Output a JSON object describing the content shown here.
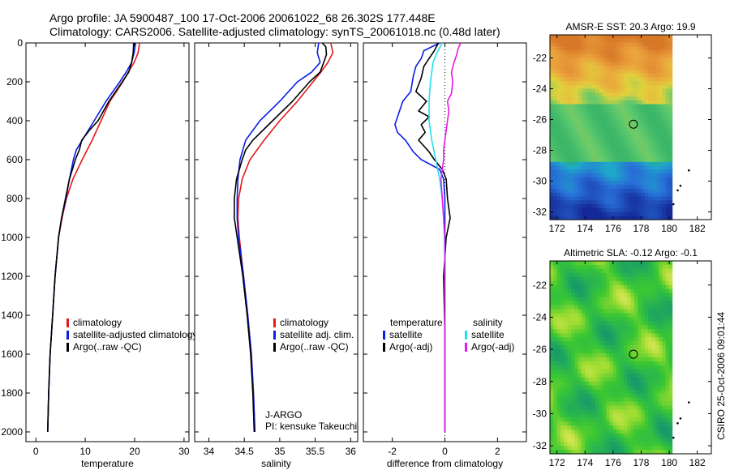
{
  "header": {
    "line1": "Argo profile: JA 5900487_100 17-Oct-2006 20061022_68 26.302S 177.448E",
    "line2": "Climatology: CARS2006. Satellite-adjusted climatology: synTS_20061018.nc (0.48d later)"
  },
  "footer": {
    "credit": "CSIRO 25-Oct-2006 09:01:44"
  },
  "colors": {
    "climatology": "#e31a1c",
    "satellite": "#0a1ee6",
    "argo": "#000000",
    "sat_diff": "#22e0f0",
    "argo_diff": "#e619e6"
  },
  "chart_data": [
    {
      "id": "temperature",
      "type": "line",
      "xlabel": "temperature",
      "ylabel": "",
      "xlim": [
        -2,
        31
      ],
      "ylim": [
        2050,
        0
      ],
      "xticks": [
        0,
        10,
        20,
        30
      ],
      "yticks": [
        0,
        200,
        400,
        600,
        800,
        1000,
        1200,
        1400,
        1600,
        1800,
        2000
      ],
      "legend": [
        "climatology",
        "satellite-adjusted climatology",
        "Argo(..raw -QC)"
      ],
      "series": [
        {
          "name": "climatology",
          "color": "#e31a1c",
          "depth": [
            0,
            50,
            100,
            150,
            200,
            300,
            400,
            500,
            600,
            700,
            800,
            900,
            1000,
            1200,
            1400,
            1600,
            1800,
            2000
          ],
          "values": [
            21.0,
            20.7,
            19.9,
            18.7,
            17.6,
            15.0,
            13.2,
            11.4,
            9.4,
            7.5,
            6.2,
            5.3,
            4.6,
            3.9,
            3.4,
            2.9,
            2.6,
            2.4
          ]
        },
        {
          "name": "satellite-adjusted climatology",
          "color": "#0a1ee6",
          "depth": [
            0,
            50,
            100,
            150,
            200,
            300,
            400,
            500,
            550,
            600,
            700,
            800,
            900,
            1000,
            1200,
            1400,
            1600,
            1800,
            2000
          ],
          "values": [
            20.2,
            19.9,
            19.4,
            18.3,
            17.0,
            14.2,
            11.8,
            9.4,
            8.2,
            7.6,
            6.8,
            6.1,
            5.2,
            4.6,
            3.9,
            3.4,
            2.9,
            2.6,
            2.4
          ]
        },
        {
          "name": "Argo(..raw -QC)",
          "color": "#000000",
          "depth": [
            0,
            50,
            100,
            150,
            200,
            300,
            400,
            450,
            500,
            550,
            600,
            650,
            700,
            800,
            900,
            1000,
            1200,
            1400,
            1600,
            1800,
            2000
          ],
          "values": [
            19.8,
            19.7,
            19.4,
            18.8,
            17.5,
            14.8,
            12.6,
            10.8,
            9.3,
            8.8,
            8.0,
            7.4,
            6.8,
            6.0,
            5.2,
            4.6,
            3.9,
            3.4,
            2.9,
            2.6,
            2.4
          ]
        }
      ]
    },
    {
      "id": "salinity",
      "type": "line",
      "xlabel": "salinity",
      "ylabel": "",
      "xlim": [
        33.8,
        36.1
      ],
      "ylim": [
        2050,
        0
      ],
      "xticks": [
        34,
        34.5,
        35,
        35.5,
        36
      ],
      "yticks": [
        0,
        200,
        400,
        600,
        800,
        1000,
        1200,
        1400,
        1600,
        1800,
        2000
      ],
      "legend": [
        "climatology",
        "satellite adj. clim.",
        "Argo(..raw -QC)"
      ],
      "annotation": [
        "J-ARGO",
        "PI: kensuke Takeuchi"
      ],
      "series": [
        {
          "name": "climatology",
          "color": "#e31a1c",
          "depth": [
            0,
            50,
            100,
            150,
            200,
            300,
            400,
            500,
            600,
            700,
            800,
            900,
            1000,
            1200,
            1400,
            1600,
            1800,
            2000
          ],
          "values": [
            35.72,
            35.75,
            35.68,
            35.58,
            35.47,
            35.25,
            35.0,
            34.78,
            34.58,
            34.47,
            34.42,
            34.41,
            34.43,
            34.49,
            34.55,
            34.6,
            34.63,
            34.65
          ]
        },
        {
          "name": "satellite adj. clim.",
          "color": "#0a1ee6",
          "depth": [
            0,
            50,
            100,
            150,
            200,
            300,
            400,
            500,
            600,
            700,
            800,
            900,
            1000,
            1200,
            1400,
            1600,
            1800,
            2000
          ],
          "values": [
            35.55,
            35.53,
            35.57,
            35.45,
            35.25,
            35.0,
            34.72,
            34.52,
            34.44,
            34.41,
            34.4,
            34.4,
            34.42,
            34.49,
            34.55,
            34.6,
            34.63,
            34.65
          ]
        },
        {
          "name": "Argo(..raw -QC)",
          "color": "#000000",
          "depth": [
            0,
            20,
            60,
            100,
            150,
            200,
            300,
            400,
            450,
            500,
            550,
            600,
            650,
            700,
            800,
            900,
            1000,
            1200,
            1400,
            1600,
            1800,
            2000
          ],
          "values": [
            35.6,
            35.65,
            35.66,
            35.62,
            35.57,
            35.42,
            35.18,
            34.9,
            34.76,
            34.62,
            34.52,
            34.47,
            34.43,
            34.39,
            34.36,
            34.36,
            34.4,
            34.48,
            34.54,
            34.59,
            34.62,
            34.64
          ]
        }
      ]
    },
    {
      "id": "difference",
      "type": "line",
      "xlabel": "difference from climatology",
      "ylabel": "",
      "xlim": [
        -3.1,
        3.1
      ],
      "ylim": [
        2050,
        0
      ],
      "xticks": [
        -2,
        0,
        2
      ],
      "yticks": [
        0,
        200,
        400,
        600,
        800,
        1000,
        1200,
        1400,
        1600,
        1800,
        2000
      ],
      "legend_temperature": [
        "temperature",
        "satellite",
        "Argo(-adj)"
      ],
      "legend_salinity": [
        "salinity",
        "satellite",
        "Argo(-adj)"
      ],
      "series": [
        {
          "name": "temperature satellite",
          "color": "#0a1ee6",
          "depth": [
            0,
            40,
            80,
            120,
            170,
            250,
            300,
            380,
            420,
            460,
            500,
            560,
            600,
            650,
            700,
            800,
            900,
            1000,
            1200,
            1500,
            2000
          ],
          "values": [
            -0.2,
            -0.8,
            -0.9,
            -1.1,
            -1.2,
            -1.3,
            -1.6,
            -1.8,
            -1.9,
            -1.8,
            -1.5,
            -1.2,
            -0.9,
            -0.2,
            -0.05,
            0.0,
            0.0,
            0.0,
            0.0,
            0.0,
            0.0
          ]
        },
        {
          "name": "temperature Argo(-adj)",
          "color": "#000000",
          "depth": [
            0,
            40,
            80,
            120,
            180,
            250,
            300,
            350,
            380,
            420,
            460,
            500,
            560,
            600,
            650,
            700,
            800,
            900,
            1000,
            1200,
            1500,
            2000
          ],
          "values": [
            -0.25,
            -0.4,
            -0.6,
            -0.8,
            -0.9,
            -1.1,
            -0.7,
            -1.0,
            -0.6,
            -0.9,
            -0.75,
            -1.0,
            -0.6,
            -0.4,
            -0.1,
            0.05,
            0.1,
            0.2,
            0.05,
            -0.05,
            0.0,
            0.0
          ]
        },
        {
          "name": "salinity satellite",
          "color": "#22e0f0",
          "depth": [
            0,
            50,
            100,
            200,
            300,
            400,
            500,
            600,
            700,
            800,
            900,
            1000,
            1200,
            1500,
            2000
          ],
          "values": [
            -0.1,
            -0.3,
            -0.45,
            -0.55,
            -0.6,
            -0.6,
            -0.5,
            -0.35,
            -0.2,
            -0.1,
            -0.05,
            -0.02,
            0.0,
            0.0,
            0.0
          ]
        },
        {
          "name": "salinity Argo(-adj)",
          "color": "#e619e6",
          "depth": [
            0,
            30,
            60,
            100,
            150,
            200,
            260,
            300,
            350,
            400,
            450,
            500,
            550,
            600,
            650,
            700,
            800,
            900,
            1000,
            1200,
            1500,
            2000
          ],
          "values": [
            0.6,
            0.5,
            0.45,
            0.35,
            0.25,
            0.3,
            0.25,
            0.1,
            0.15,
            0.1,
            0.05,
            0.0,
            -0.05,
            -0.05,
            -0.1,
            -0.15,
            -0.1,
            -0.05,
            0.0,
            0.0,
            0.0,
            0.0
          ]
        }
      ]
    },
    {
      "id": "sst_map",
      "type": "heatmap",
      "title": "AMSR-E SST: 20.3  Argo: 19.9",
      "xlim": [
        171.5,
        183
      ],
      "ylim": [
        -32.5,
        -20.5
      ],
      "xticks": [
        172,
        174,
        176,
        178,
        180,
        182
      ],
      "yticks": [
        -22,
        -24,
        -26,
        -28,
        -30,
        -32
      ],
      "data_xmax": 180.2,
      "marker": {
        "lon": 177.448,
        "lat": -26.302
      },
      "islands": [
        [
          181.4,
          -29.3
        ],
        [
          180.8,
          -30.3
        ],
        [
          180.6,
          -30.6
        ],
        [
          180.3,
          -31.5
        ]
      ]
    },
    {
      "id": "sla_map",
      "type": "heatmap",
      "title": "Altimetric SLA: -0.12  Argo: -0.1",
      "xlim": [
        171.5,
        183
      ],
      "ylim": [
        -32.5,
        -20.5
      ],
      "xticks": [
        172,
        174,
        176,
        178,
        180,
        182
      ],
      "yticks": [
        -22,
        -24,
        -26,
        -28,
        -30,
        -32
      ],
      "data_xmax": 180.2,
      "marker": {
        "lon": 177.448,
        "lat": -26.302
      },
      "islands": [
        [
          181.4,
          -29.3
        ],
        [
          180.8,
          -30.3
        ],
        [
          180.6,
          -30.6
        ],
        [
          180.3,
          -31.5
        ]
      ]
    }
  ]
}
